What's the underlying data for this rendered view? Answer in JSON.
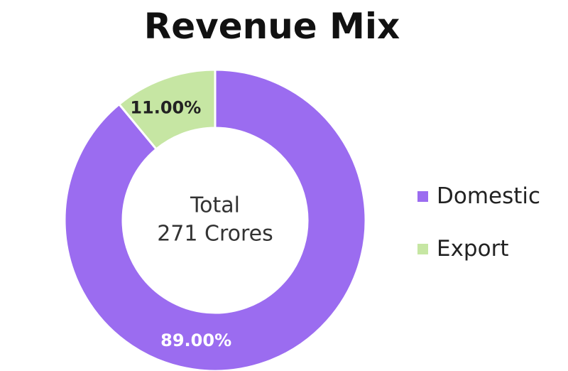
{
  "chart_data": {
    "type": "pie",
    "variant": "donut",
    "title": "Revenue Mix",
    "center_text": [
      "Total",
      "271 Crores"
    ],
    "categories": [
      "Domestic",
      "Export"
    ],
    "values": [
      89.0,
      11.0
    ],
    "value_labels": [
      "89.00%",
      "11.00%"
    ],
    "colors": [
      "#9B6CF0",
      "#C6E6A3"
    ],
    "legend_position": "right"
  }
}
